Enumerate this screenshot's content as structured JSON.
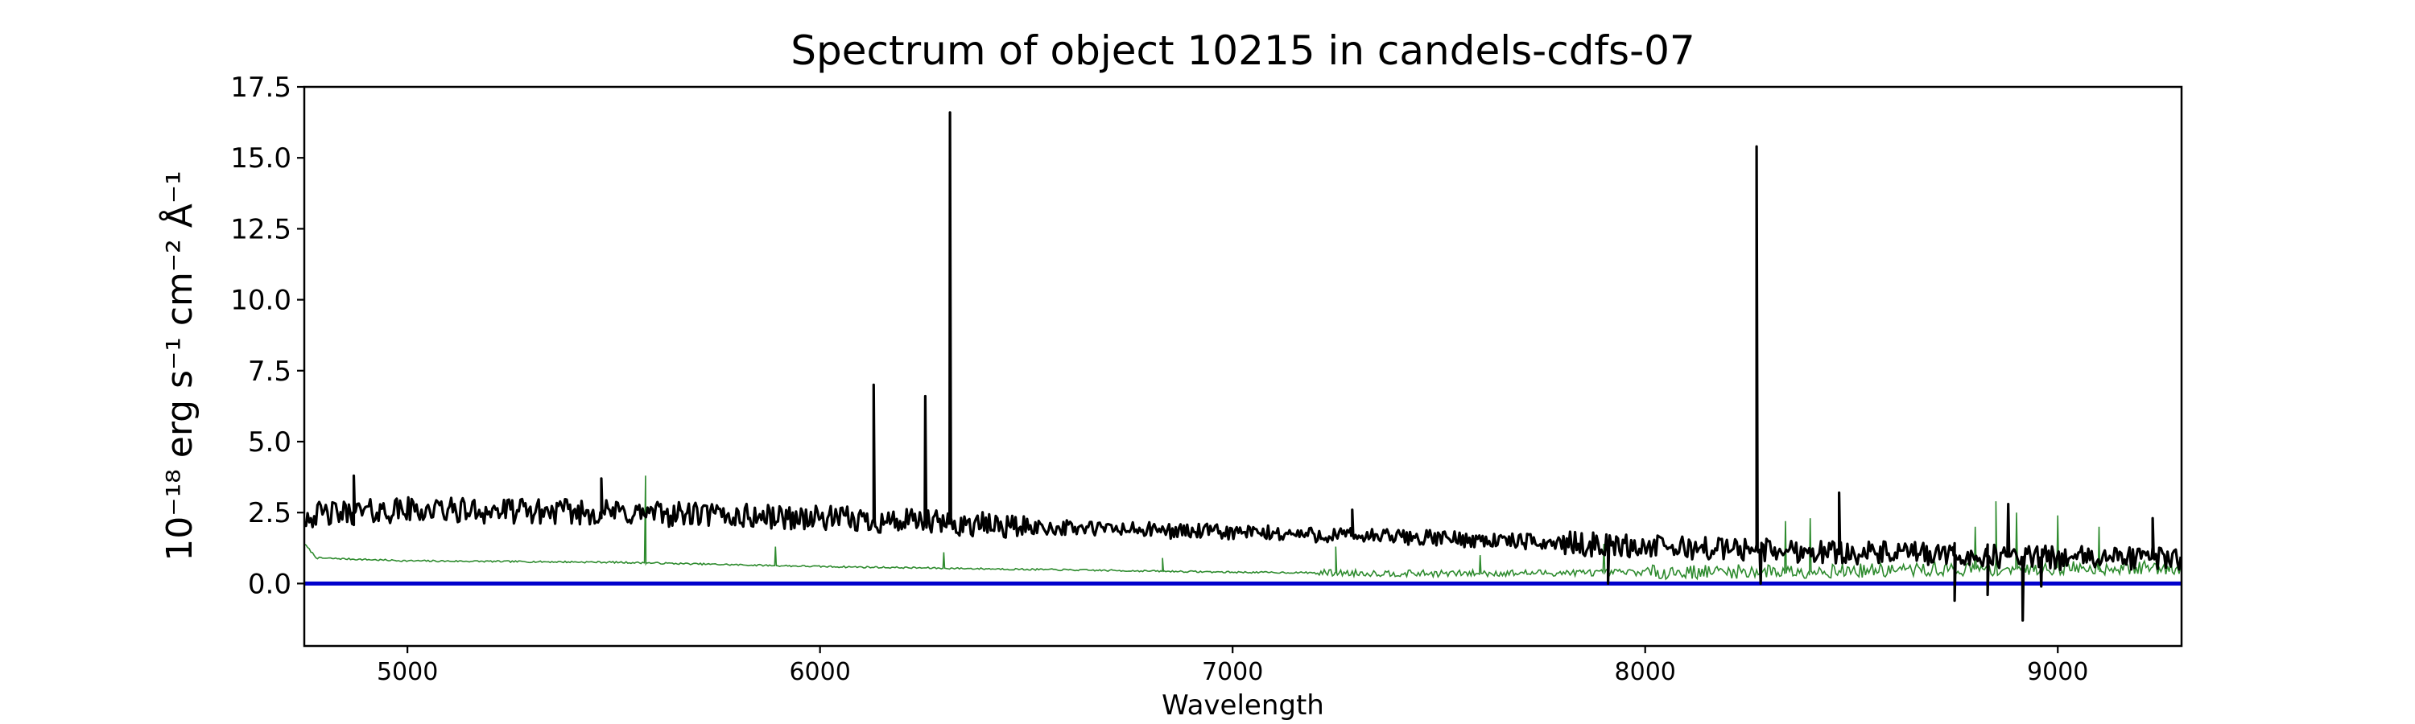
{
  "chart_data": {
    "type": "line",
    "title": "Spectrum of object 10215 in candels-cdfs-07",
    "xlabel": "Wavelength",
    "ylabel": "10⁻¹⁸ erg s⁻¹ cm⁻² Å⁻¹",
    "xlim": [
      4750,
      9300
    ],
    "ylim": [
      -2.2,
      17.5
    ],
    "xticks": [
      5000,
      6000,
      7000,
      8000,
      9000
    ],
    "xtick_labels": [
      "5000",
      "6000",
      "7000",
      "8000",
      "9000"
    ],
    "yticks": [
      0.0,
      2.5,
      5.0,
      7.5,
      10.0,
      12.5,
      15.0,
      17.5
    ],
    "ytick_labels": [
      "0.0",
      "2.5",
      "5.0",
      "7.5",
      "10.0",
      "12.5",
      "15.0",
      "17.5"
    ],
    "grid": false,
    "colors": {
      "spectrum": "#000000",
      "noise": "#2e8b2e",
      "zero_line": "#0000cc"
    },
    "series": [
      {
        "role": "spectrum",
        "continuum": [
          [
            4750,
            2.4
          ],
          [
            5000,
            2.6
          ],
          [
            5500,
            2.5
          ],
          [
            6000,
            2.3
          ],
          [
            6500,
            2.0
          ],
          [
            7000,
            1.8
          ],
          [
            7500,
            1.6
          ],
          [
            8000,
            1.3
          ],
          [
            8500,
            1.1
          ],
          [
            9000,
            0.9
          ],
          [
            9300,
            0.9
          ]
        ],
        "peaks": [
          {
            "x": 4870,
            "y": 3.8
          },
          {
            "x": 5470,
            "y": 3.7
          },
          {
            "x": 6130,
            "y": 7.0
          },
          {
            "x": 6255,
            "y": 6.6
          },
          {
            "x": 6315,
            "y": 16.6
          },
          {
            "x": 7290,
            "y": 2.6
          },
          {
            "x": 8270,
            "y": 15.4
          },
          {
            "x": 8470,
            "y": 3.2
          },
          {
            "x": 8880,
            "y": 2.8
          },
          {
            "x": 9230,
            "y": 2.3
          }
        ],
        "dips": [
          {
            "x": 7910,
            "y": 0.0
          },
          {
            "x": 8280,
            "y": 0.0
          },
          {
            "x": 8750,
            "y": -0.6
          },
          {
            "x": 8830,
            "y": -0.4
          },
          {
            "x": 8915,
            "y": -1.3
          },
          {
            "x": 8960,
            "y": -0.1
          }
        ]
      },
      {
        "role": "noise",
        "continuum": [
          [
            4750,
            1.4
          ],
          [
            4780,
            0.9
          ],
          [
            5000,
            0.8
          ],
          [
            5500,
            0.75
          ],
          [
            6000,
            0.6
          ],
          [
            6500,
            0.5
          ],
          [
            7000,
            0.4
          ],
          [
            7500,
            0.35
          ],
          [
            8000,
            0.4
          ],
          [
            8500,
            0.45
          ],
          [
            9000,
            0.55
          ],
          [
            9300,
            0.55
          ]
        ],
        "peaks": [
          {
            "x": 5577,
            "y": 3.8
          },
          {
            "x": 5892,
            "y": 1.3
          },
          {
            "x": 6300,
            "y": 1.1
          },
          {
            "x": 6830,
            "y": 0.9
          },
          {
            "x": 7250,
            "y": 1.3
          },
          {
            "x": 7600,
            "y": 1.0
          },
          {
            "x": 7900,
            "y": 1.4
          },
          {
            "x": 8340,
            "y": 2.2
          },
          {
            "x": 8400,
            "y": 2.3
          },
          {
            "x": 8800,
            "y": 2.0
          },
          {
            "x": 8850,
            "y": 2.9
          },
          {
            "x": 8900,
            "y": 2.5
          },
          {
            "x": 9000,
            "y": 2.4
          },
          {
            "x": 9100,
            "y": 2.0
          }
        ],
        "dips": []
      },
      {
        "role": "zero_line",
        "y": 0.0
      }
    ]
  }
}
